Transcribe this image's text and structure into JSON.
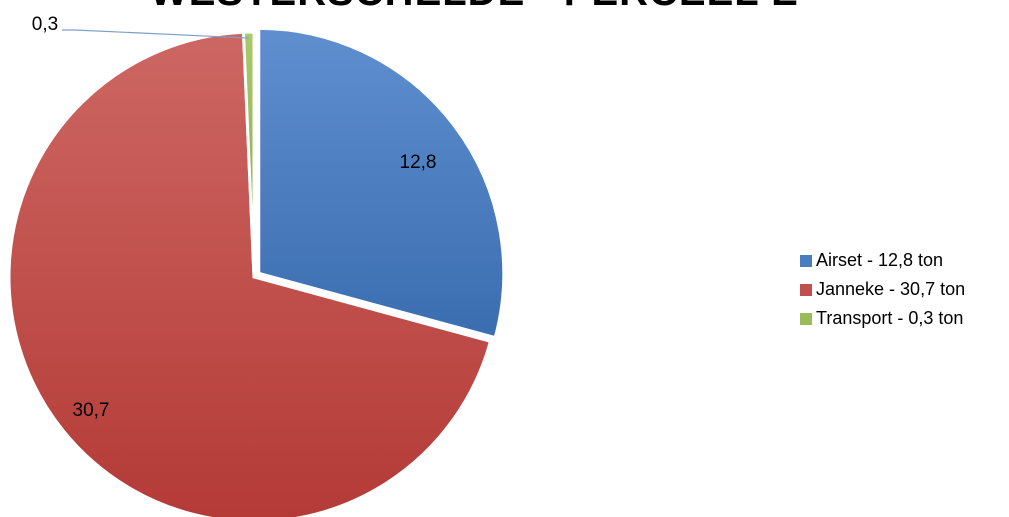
{
  "chart_data": {
    "type": "pie",
    "title": "WESTERSCHELDE - PERCEEL E",
    "categories": [
      "Airset",
      "Janneke",
      "Transport"
    ],
    "values": [
      12.8,
      30.7,
      0.3
    ],
    "data_labels": [
      "12,8",
      "30,7",
      "0,3"
    ],
    "legend": [
      "Airset - 12,8 ton",
      "Janneke - 30,7 ton",
      "Transport - 0,3 ton"
    ],
    "colors": [
      "#4a7dc0",
      "#c0504d",
      "#9bbb59"
    ],
    "legend_position": "right",
    "exploded_slice": "Airset"
  }
}
